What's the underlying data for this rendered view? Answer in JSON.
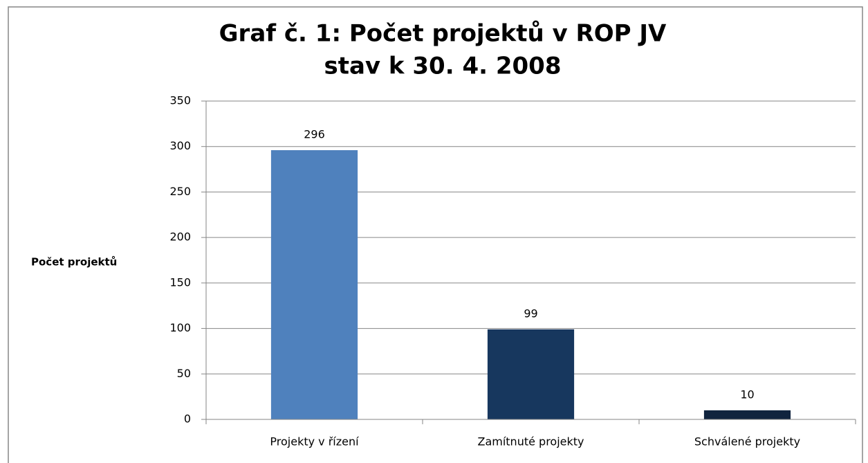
{
  "chart_data": {
    "type": "bar",
    "title": "Graf č. 1: Počet projektů v ROP JV",
    "subtitle": "stav k 30. 4. 2008",
    "y_label": "Počet projektů",
    "categories": [
      "Projekty v řízení",
      "Zamítnuté projekty",
      "Schválené projekty"
    ],
    "values": [
      296,
      99,
      10
    ],
    "colors": [
      "#4f81bd",
      "#17375e",
      "#10243e"
    ],
    "ylim": [
      0,
      350
    ],
    "yticks": [
      0,
      50,
      100,
      150,
      200,
      250,
      300,
      350
    ],
    "grid": true
  }
}
